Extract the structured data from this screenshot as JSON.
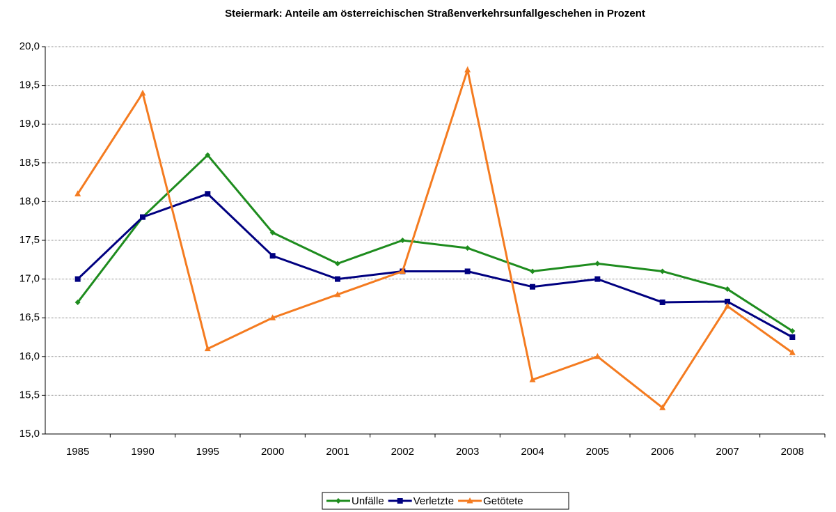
{
  "chart_data": {
    "type": "line",
    "title": "Steiermark: Anteile am österreichischen Straßenverkehrsunfallgeschehen in Prozent",
    "categories": [
      "1985",
      "1990",
      "1995",
      "2000",
      "2001",
      "2002",
      "2003",
      "2004",
      "2005",
      "2006",
      "2007",
      "2008"
    ],
    "series": [
      {
        "name": "Unfälle",
        "color": "#1e8c1e",
        "marker": "diamond",
        "values": [
          16.7,
          17.8,
          18.6,
          17.6,
          17.2,
          17.5,
          17.4,
          17.1,
          17.2,
          17.1,
          16.87,
          16.33
        ]
      },
      {
        "name": "Verletzte",
        "color": "#000080",
        "marker": "square",
        "values": [
          17.0,
          17.8,
          18.1,
          17.3,
          17.0,
          17.1,
          17.1,
          16.9,
          17.0,
          16.7,
          16.71,
          16.25
        ]
      },
      {
        "name": "Getötete",
        "color": "#f47b20",
        "marker": "triangle",
        "values": [
          18.1,
          19.4,
          16.1,
          16.5,
          16.8,
          17.1,
          19.7,
          15.7,
          16.0,
          15.34,
          16.65,
          16.05
        ]
      }
    ],
    "ylim": [
      15,
      20
    ],
    "yticks": [
      {
        "value": 15,
        "label": "15,0"
      },
      {
        "value": 15.5,
        "label": "15,5"
      },
      {
        "value": 16,
        "label": "16,0"
      },
      {
        "value": 16.5,
        "label": "16,5"
      },
      {
        "value": 17,
        "label": "17,0"
      },
      {
        "value": 17.5,
        "label": "17,5"
      },
      {
        "value": 18,
        "label": "18,0"
      },
      {
        "value": 18.5,
        "label": "18,5"
      },
      {
        "value": 19,
        "label": "19,0"
      },
      {
        "value": 19.5,
        "label": "19,5"
      },
      {
        "value": 20,
        "label": "20,0"
      }
    ],
    "grid": true,
    "legend": "bottom"
  }
}
